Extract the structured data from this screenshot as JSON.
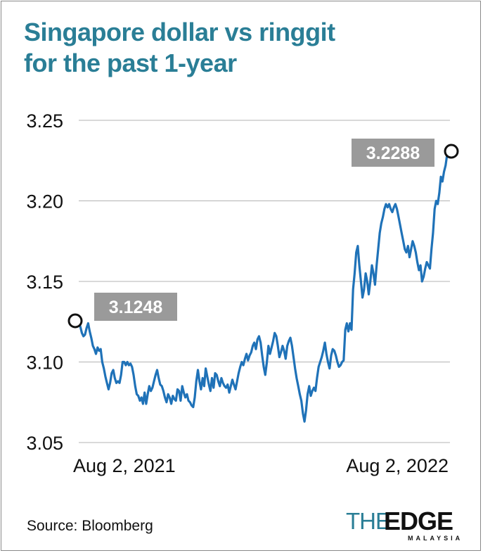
{
  "title_lines": [
    "Singapore dollar vs ringgit",
    "for the past 1-year"
  ],
  "source": "Source: Bloomberg",
  "logo": {
    "the": "THE",
    "edge": "EDGE",
    "sub": "MALAYSIA"
  },
  "colors": {
    "title": "#2a7e96",
    "line": "#1f72b8",
    "grid": "#b3b3b3",
    "label_box": "#9a9a9a"
  },
  "chart_data": {
    "type": "line",
    "title": "Singapore dollar vs ringgit for the past 1-year",
    "xlabel": "",
    "ylabel": "",
    "ylim": [
      3.05,
      3.25
    ],
    "yticks": [
      3.25,
      3.2,
      3.15,
      3.1,
      3.05
    ],
    "ytick_labels": [
      "3.25",
      "3.20",
      "3.15",
      "3.10",
      "3.05"
    ],
    "xtick_labels": [
      "Aug 2, 2021",
      "Aug 2, 2022"
    ],
    "grid": true,
    "annotations": [
      {
        "label": "3.1248",
        "point": "start"
      },
      {
        "label": "3.2288",
        "point": "end"
      }
    ],
    "series": [
      {
        "values": [
          3.1248,
          3.122,
          3.118,
          3.116,
          3.117,
          3.121,
          3.124,
          3.119,
          3.115,
          3.11,
          3.108,
          3.105,
          3.109,
          3.107,
          3.108,
          3.1,
          3.096,
          3.091,
          3.087,
          3.083,
          3.087,
          3.093,
          3.095,
          3.09,
          3.087,
          3.088,
          3.087,
          3.092,
          3.1,
          3.1,
          3.098,
          3.1,
          3.098,
          3.099,
          3.097,
          3.092,
          3.085,
          3.08,
          3.079,
          3.076,
          3.078,
          3.074,
          3.081,
          3.074,
          3.08,
          3.085,
          3.082,
          3.084,
          3.088,
          3.092,
          3.095,
          3.09,
          3.086,
          3.085,
          3.082,
          3.078,
          3.075,
          3.08,
          3.078,
          3.074,
          3.079,
          3.077,
          3.076,
          3.083,
          3.082,
          3.076,
          3.085,
          3.081,
          3.078,
          3.08,
          3.076,
          3.075,
          3.073,
          3.072,
          3.078,
          3.088,
          3.095,
          3.088,
          3.083,
          3.09,
          3.085,
          3.096,
          3.091,
          3.086,
          3.082,
          3.09,
          3.084,
          3.093,
          3.092,
          3.088,
          3.085,
          3.09,
          3.087,
          3.085,
          3.084,
          3.086,
          3.081,
          3.085,
          3.089,
          3.086,
          3.083,
          3.088,
          3.093,
          3.097,
          3.1,
          3.098,
          3.102,
          3.105,
          3.101,
          3.104,
          3.106,
          3.11,
          3.112,
          3.108,
          3.114,
          3.116,
          3.112,
          3.104,
          3.097,
          3.092,
          3.1,
          3.11,
          3.105,
          3.109,
          3.113,
          3.118,
          3.116,
          3.11,
          3.103,
          3.106,
          3.11,
          3.107,
          3.102,
          3.11,
          3.113,
          3.115,
          3.11,
          3.103,
          3.096,
          3.09,
          3.085,
          3.08,
          3.076,
          3.068,
          3.063,
          3.07,
          3.08,
          3.085,
          3.079,
          3.082,
          3.084,
          3.082,
          3.09,
          3.097,
          3.1,
          3.103,
          3.107,
          3.112,
          3.105,
          3.1,
          3.096,
          3.104,
          3.108,
          3.107,
          3.104,
          3.1,
          3.097,
          3.098,
          3.1,
          3.101,
          3.12,
          3.124,
          3.119,
          3.124,
          3.12,
          3.145,
          3.155,
          3.168,
          3.172,
          3.16,
          3.15,
          3.14,
          3.145,
          3.155,
          3.15,
          3.142,
          3.15,
          3.16,
          3.155,
          3.148,
          3.16,
          3.17,
          3.18,
          3.186,
          3.19,
          3.195,
          3.198,
          3.196,
          3.198,
          3.195,
          3.193,
          3.196,
          3.198,
          3.195,
          3.19,
          3.185,
          3.18,
          3.175,
          3.17,
          3.168,
          3.172,
          3.165,
          3.17,
          3.175,
          3.172,
          3.168,
          3.162,
          3.157,
          3.16,
          3.15,
          3.153,
          3.158,
          3.162,
          3.16,
          3.158,
          3.17,
          3.18,
          3.195,
          3.2,
          3.198,
          3.205,
          3.215,
          3.212,
          3.218,
          3.222,
          3.2288
        ]
      }
    ]
  }
}
